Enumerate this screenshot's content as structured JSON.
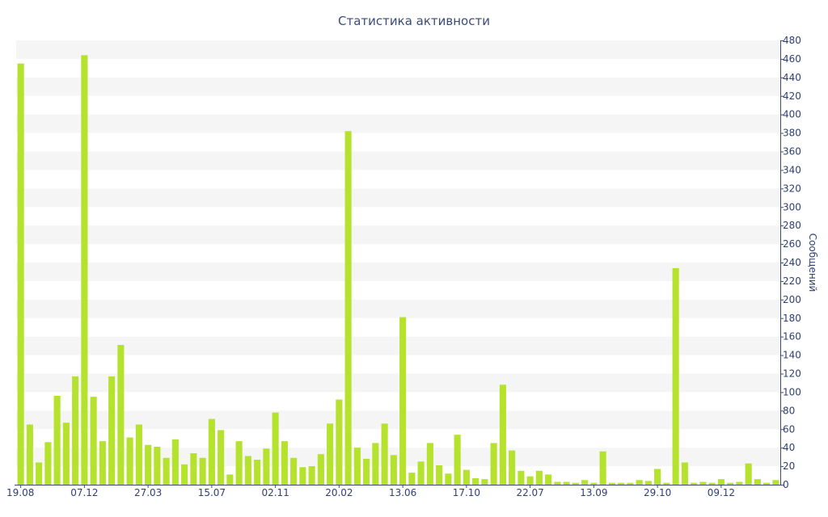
{
  "chart_data": {
    "type": "bar",
    "title": "Статистика активности",
    "xlabel": "",
    "ylabel": "Сообщений",
    "ylim": [
      0,
      480
    ],
    "y_ticks": [
      0,
      20,
      40,
      60,
      80,
      100,
      120,
      140,
      160,
      180,
      200,
      220,
      240,
      260,
      280,
      300,
      320,
      340,
      360,
      380,
      400,
      420,
      440,
      460,
      480
    ],
    "y_axis_position": "right",
    "grid": "alternating horizontal bands",
    "legend": "none",
    "bar_color": "#b5e22d",
    "x_tick_labels": [
      {
        "label": "19.08",
        "index": 0
      },
      {
        "label": "07.12",
        "index": 7
      },
      {
        "label": "27.03",
        "index": 14
      },
      {
        "label": "15.07",
        "index": 21
      },
      {
        "label": "02.11",
        "index": 28
      },
      {
        "label": "20.02",
        "index": 35
      },
      {
        "label": "13.06",
        "index": 42
      },
      {
        "label": "17.10",
        "index": 49
      },
      {
        "label": "22.07",
        "index": 56
      },
      {
        "label": "13.09",
        "index": 63
      },
      {
        "label": "29.10",
        "index": 70
      },
      {
        "label": "09.12",
        "index": 77
      }
    ],
    "values": [
      455,
      65,
      24,
      46,
      96,
      67,
      117,
      464,
      95,
      47,
      117,
      151,
      51,
      65,
      43,
      41,
      29,
      49,
      22,
      34,
      29,
      71,
      59,
      11,
      47,
      31,
      27,
      39,
      78,
      47,
      29,
      19,
      20,
      33,
      66,
      92,
      382,
      40,
      28,
      45,
      66,
      32,
      181,
      13,
      25,
      45,
      21,
      12,
      54,
      16,
      7,
      6,
      45,
      108,
      37,
      15,
      9,
      15,
      11,
      3,
      3,
      2,
      5,
      2,
      36,
      2,
      2,
      2,
      5,
      4,
      17,
      2,
      234,
      24,
      2,
      3,
      2,
      6,
      2,
      3,
      23,
      6,
      2,
      5
    ]
  }
}
